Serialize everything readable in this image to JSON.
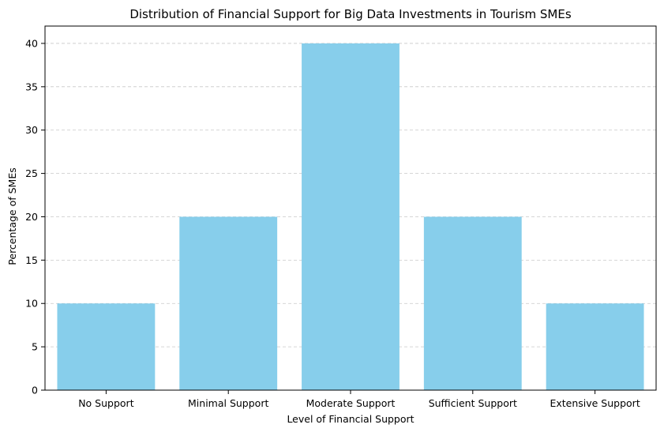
{
  "chart_data": {
    "type": "bar",
    "title": "Distribution of Financial Support for Big Data Investments in Tourism SMEs",
    "xlabel": "Level of Financial Support",
    "ylabel": "Percentage of SMEs",
    "categories": [
      "No Support",
      "Minimal Support",
      "Moderate Support",
      "Sufficient Support",
      "Extensive Support"
    ],
    "values": [
      10,
      20,
      40,
      20,
      10
    ],
    "ylim": [
      0,
      42
    ],
    "yticks": [
      0,
      5,
      10,
      15,
      20,
      25,
      30,
      35,
      40
    ],
    "grid": "y-dashed",
    "colors": {
      "bar": "#87ceeb",
      "grid": "#c8c8c8",
      "axis": "#000000"
    }
  }
}
